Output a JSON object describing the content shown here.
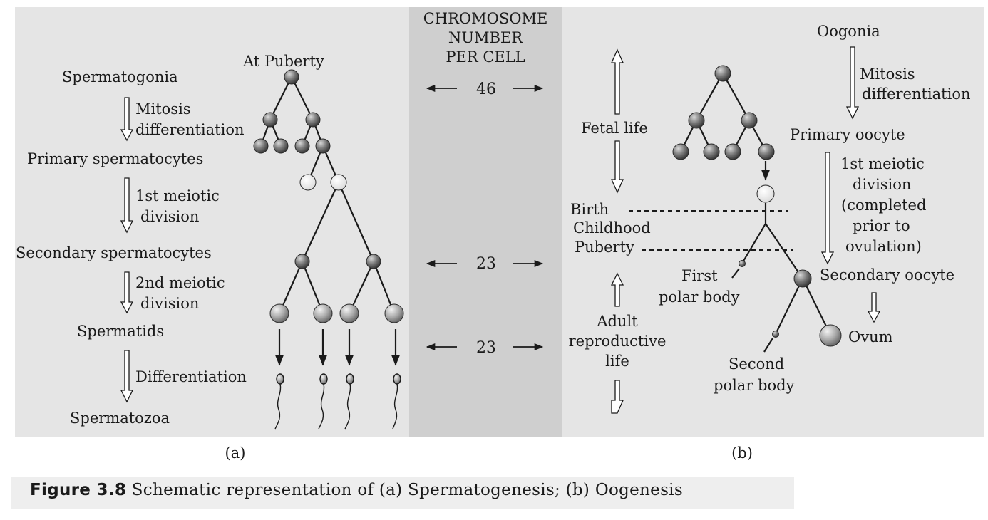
{
  "colors": {
    "panel": "#e5e5e5",
    "middle_band": "#cfcfcf",
    "text": "#1a1a1a",
    "cell_dark": "#6e6e6e",
    "cell_light": "#f6f6f6"
  },
  "middle": {
    "header_lines": [
      "CHROMOSOME",
      "NUMBER",
      "PER CELL"
    ],
    "counts": [
      "46",
      "23",
      "23"
    ]
  },
  "spermatogenesis": {
    "puberty_label": "At Puberty",
    "stages": [
      "Spermatogonia",
      "Primary spermatocytes",
      "Secondary spermatocytes",
      "Spermatids",
      "Spermatozoa"
    ],
    "steps": [
      [
        "Mitosis",
        "differentiation"
      ],
      [
        "1st meiotic",
        "division"
      ],
      [
        "2nd meiotic",
        "division"
      ],
      [
        "Differentiation"
      ]
    ],
    "panel_label": "(a)"
  },
  "oogenesis": {
    "stages": [
      "Oogonia",
      "Primary oocyte",
      "Secondary oocyte",
      "Ovum"
    ],
    "steps": [
      [
        "Mitosis",
        "differentiation"
      ],
      [
        "1st meiotic",
        "division",
        "(completed",
        "prior to",
        "ovulation)"
      ]
    ],
    "life_labels": {
      "fetal": "Fetal life",
      "birth": "Birth",
      "childhood": "Childhood",
      "puberty": "Puberty",
      "adult": [
        "Adult",
        "reproductive",
        "life"
      ]
    },
    "polar_bodies": [
      [
        "First",
        "polar body"
      ],
      [
        "Second",
        "polar body"
      ]
    ],
    "panel_label": "(b)"
  },
  "caption": {
    "label": "Figure 3.8",
    "text": " Schematic representation of (a) Spermatogenesis; (b) Oogenesis"
  }
}
